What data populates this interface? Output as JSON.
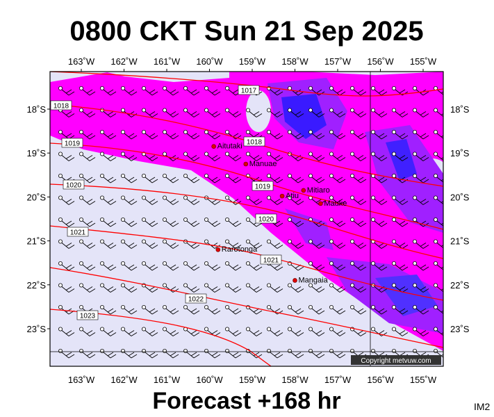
{
  "header": {
    "title": "0800 CKT Sun 21 Sep 2025"
  },
  "map": {
    "lon_ticks": [
      {
        "value": 163,
        "label": "163˚W"
      },
      {
        "value": 162,
        "label": "162˚W"
      },
      {
        "value": 161,
        "label": "161˚W"
      },
      {
        "value": 160,
        "label": "160˚W"
      },
      {
        "value": 159,
        "label": "159˚W"
      },
      {
        "value": 158,
        "label": "158˚W"
      },
      {
        "value": 157,
        "label": "157˚W"
      },
      {
        "value": 156,
        "label": "156˚W"
      },
      {
        "value": 155,
        "label": "155˚W"
      }
    ],
    "lat_ticks": [
      {
        "value": 18,
        "label": "18˚S"
      },
      {
        "value": 19,
        "label": "19˚S"
      },
      {
        "value": 20,
        "label": "20˚S"
      },
      {
        "value": 21,
        "label": "21˚S"
      },
      {
        "value": 22,
        "label": "22˚S"
      },
      {
        "value": 23,
        "label": "23˚S"
      }
    ],
    "places": [
      {
        "name": "Aitutaki",
        "lon": 159.9,
        "lat": 18.85
      },
      {
        "name": "Manuae",
        "lon": 159.15,
        "lat": 19.25
      },
      {
        "name": "Mitiaro",
        "lon": 157.8,
        "lat": 19.85
      },
      {
        "name": "Atiu",
        "lon": 158.3,
        "lat": 19.98
      },
      {
        "name": "Mauke",
        "lon": 157.4,
        "lat": 20.15
      },
      {
        "name": "Rarotonga",
        "lon": 159.8,
        "lat": 21.2
      },
      {
        "name": "Mangaia",
        "lon": 158.0,
        "lat": 21.9
      }
    ],
    "isobar_labels": [
      "1017",
      "1018",
      "1018",
      "1019",
      "1019",
      "1020",
      "1020",
      "1021",
      "1021",
      "1022",
      "1023"
    ]
  },
  "footer": {
    "forecast": "Forecast +168 hr",
    "copyright": "Copyright metvuw.com",
    "code": "IM2"
  }
}
